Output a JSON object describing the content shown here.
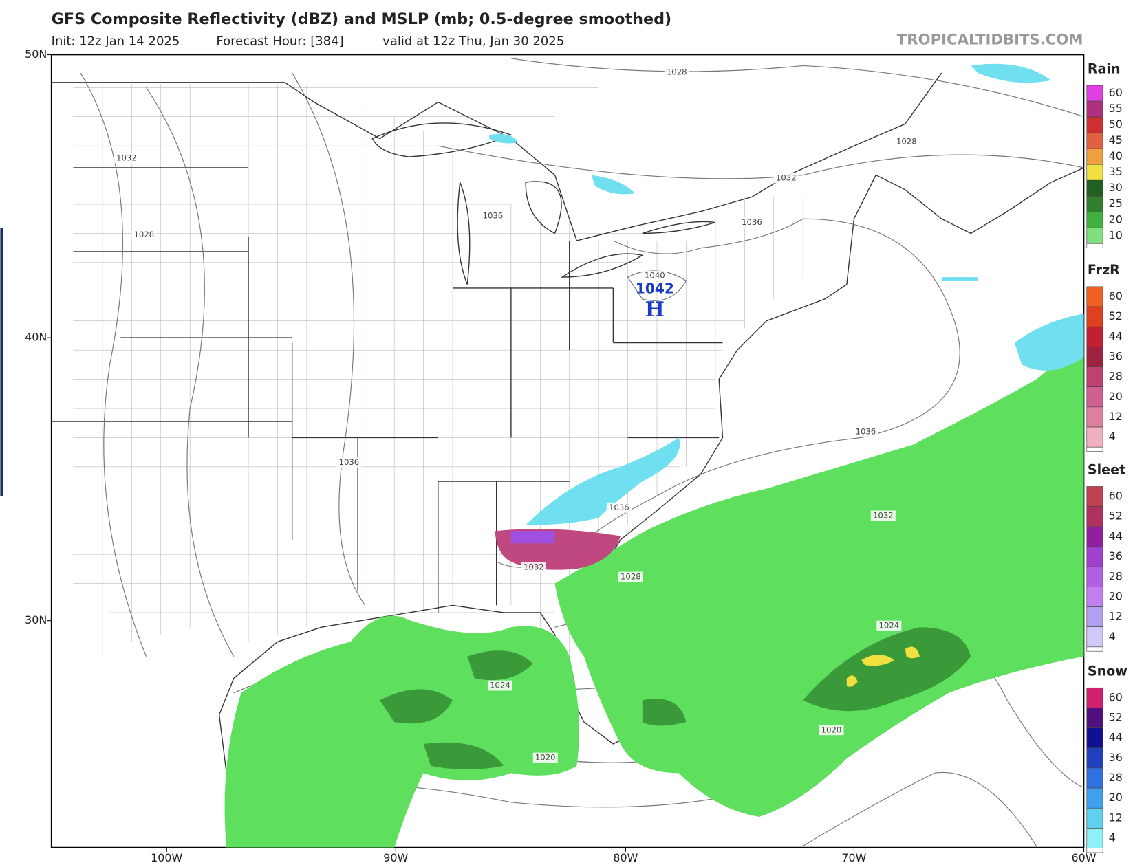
{
  "header": {
    "title": "GFS Composite Reflectivity (dBZ) and MSLP (mb; 0.5-degree smoothed)",
    "subtitle": [
      "Init: 12z Jan 14 2025",
      "Forecast Hour: [384]",
      "valid at 12z Thu, Jan 30 2025"
    ],
    "watermark": "TROPICALTIDBITS.COM"
  },
  "map": {
    "lat_labels": [
      "50N",
      "40N",
      "30N"
    ],
    "lon_labels": [
      "100W",
      "90W",
      "80W",
      "70W",
      "60W"
    ],
    "isobar_labels": [
      1028,
      1032,
      1028,
      1036,
      1032,
      1028,
      1036,
      1040,
      1036,
      1036,
      1036,
      1032,
      1032,
      1028,
      1024,
      1024,
      1020,
      1020
    ],
    "high": {
      "pressure": "1042",
      "symbol": "H"
    }
  },
  "legend": [
    {
      "title": "Rain",
      "levels": [
        60,
        55,
        50,
        45,
        40,
        35,
        30,
        25,
        20,
        10
      ],
      "colors": [
        "#e040e0",
        "#b03080",
        "#d03030",
        "#e06040",
        "#f0a040",
        "#f0e040",
        "#206020",
        "#308030",
        "#40b040",
        "#80e080"
      ]
    },
    {
      "title": "FrzR",
      "levels": [
        60,
        52,
        44,
        36,
        28,
        20,
        12,
        4
      ],
      "colors": [
        "#f06020",
        "#e04020",
        "#c02030",
        "#a02040",
        "#c04070",
        "#d06090",
        "#e080a0",
        "#f0b0c0"
      ]
    },
    {
      "title": "Sleet",
      "levels": [
        60,
        52,
        44,
        36,
        28,
        20,
        12,
        4
      ],
      "colors": [
        "#c04050",
        "#b03060",
        "#9020a0",
        "#a040d0",
        "#b060e0",
        "#c080f0",
        "#b0a0f0",
        "#d0c8f8"
      ]
    },
    {
      "title": "Snow",
      "levels": [
        60,
        52,
        44,
        36,
        28,
        20,
        12,
        4
      ],
      "colors": [
        "#d02070",
        "#501080",
        "#101090",
        "#2040c0",
        "#3070e0",
        "#40a0f0",
        "#60d0f0",
        "#90f0f8"
      ]
    }
  ]
}
